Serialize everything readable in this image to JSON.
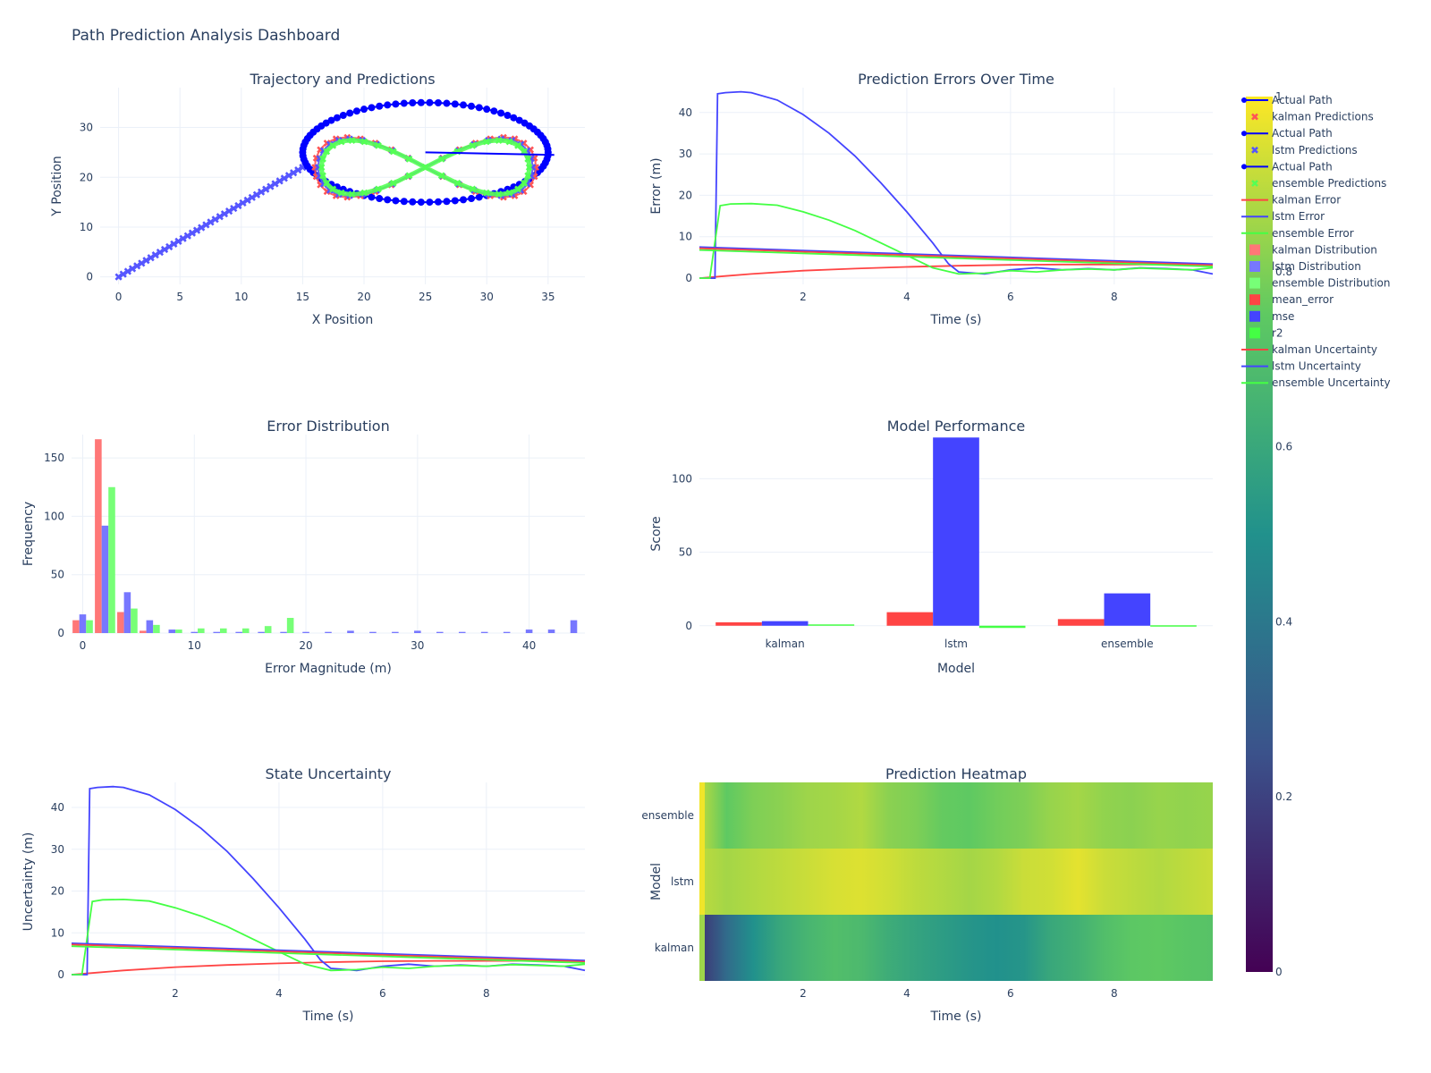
{
  "title": "Path Prediction Analysis Dashboard",
  "colors": {
    "kalman": "#EF553B",
    "lstm": "#636EFA",
    "ensemble": "#00CC96",
    "actual": "#0000FF",
    "grid": "#EBF0F8",
    "axis_text": "#2a3f5f"
  },
  "legend": [
    {
      "label": "Actual Path",
      "color": "#0000FF",
      "symbol": "line-marker"
    },
    {
      "label": "kalman Predictions",
      "color": "#FF5555",
      "symbol": "x"
    },
    {
      "label": "Actual Path",
      "color": "#0000FF",
      "symbol": "line-marker"
    },
    {
      "label": "lstm Predictions",
      "color": "#5555FF",
      "symbol": "x"
    },
    {
      "label": "Actual Path",
      "color": "#0000FF",
      "symbol": "line-marker"
    },
    {
      "label": "ensemble Predictions",
      "color": "#55FF55",
      "symbol": "x"
    },
    {
      "label": "kalman Error",
      "color": "#FF4444",
      "symbol": "line"
    },
    {
      "label": "lstm Error",
      "color": "#4444FF",
      "symbol": "line"
    },
    {
      "label": "ensemble Error",
      "color": "#44FF44",
      "symbol": "line"
    },
    {
      "label": "kalman Distribution",
      "color": "#FF7777",
      "symbol": "bar"
    },
    {
      "label": "lstm Distribution",
      "color": "#7777FF",
      "symbol": "bar"
    },
    {
      "label": "ensemble Distribution",
      "color": "#77FF77",
      "symbol": "bar"
    },
    {
      "label": "mean_error",
      "color": "#FF4444",
      "symbol": "bar"
    },
    {
      "label": "mse",
      "color": "#4444FF",
      "symbol": "bar"
    },
    {
      "label": "r2",
      "color": "#44FF44",
      "symbol": "bar"
    },
    {
      "label": "kalman Uncertainty",
      "color": "#FF4444",
      "symbol": "line"
    },
    {
      "label": "lstm Uncertainty",
      "color": "#4444FF",
      "symbol": "line"
    },
    {
      "label": "ensemble Uncertainty",
      "color": "#44FF44",
      "symbol": "line"
    }
  ],
  "colorbar": {
    "min": 0,
    "max": 1,
    "ticks": [
      "0",
      "0.2",
      "0.4",
      "0.6",
      "0.8",
      "1"
    ]
  },
  "chart_data": [
    {
      "id": "trajectory",
      "type": "scatter",
      "title": "Trajectory and Predictions",
      "xlabel": "X Position",
      "ylabel": "Y Position",
      "xlim": [
        -1.5,
        38
      ],
      "ylim": [
        -1.5,
        38
      ],
      "xticks": [
        0,
        5,
        10,
        15,
        20,
        25,
        30,
        35
      ],
      "yticks": [
        0,
        10,
        20,
        30
      ],
      "series": [
        {
          "name": "Actual Path",
          "color": "#0000FF",
          "kind": "ellipse",
          "center": [
            25,
            25
          ],
          "radii": [
            10,
            10
          ]
        },
        {
          "name": "Actual Path",
          "color": "#0000FF",
          "kind": "figure8",
          "center": [
            25,
            22
          ],
          "radii": [
            9,
            6
          ]
        },
        {
          "name": "lstm Predictions",
          "color": "#5555FF",
          "kind": "approach",
          "from": [
            0,
            0
          ],
          "to": [
            15,
            22
          ]
        }
      ]
    },
    {
      "id": "errors",
      "type": "line",
      "title": "Prediction Errors Over Time",
      "xlabel": "Time (s)",
      "ylabel": "Error (m)",
      "xlim": [
        0,
        9.9
      ],
      "ylim": [
        -1.5,
        46
      ],
      "xticks": [
        2,
        4,
        6,
        8
      ],
      "yticks": [
        0,
        10,
        20,
        30,
        40
      ],
      "series": [
        {
          "name": "kalman Error",
          "color": "#FF4444",
          "x": [
            0,
            0.5,
            1,
            2,
            3,
            4,
            5,
            6,
            7,
            8,
            9,
            9.9
          ],
          "y": [
            0,
            0.5,
            1,
            1.8,
            2.3,
            2.7,
            3,
            3.2,
            3.3,
            3.3,
            3.3,
            3.2
          ]
        },
        {
          "name": "lstm Error",
          "color": "#4444FF",
          "x": [
            0,
            0.3,
            0.35,
            0.5,
            0.8,
            1,
            1.5,
            2,
            2.5,
            3,
            3.5,
            4,
            4.5,
            4.8,
            5,
            5.5,
            6,
            6.5,
            7,
            7.5,
            8,
            8.5,
            9,
            9.5,
            9.9
          ],
          "y": [
            0,
            0,
            44.5,
            44.8,
            45,
            44.8,
            43,
            39.5,
            35,
            29.5,
            23,
            16,
            8.5,
            3.5,
            1.5,
            1,
            2,
            2.5,
            2,
            2.3,
            2,
            2.5,
            2.3,
            2,
            1
          ]
        },
        {
          "name": "ensemble Error",
          "color": "#44FF44",
          "x": [
            0,
            0.2,
            0.4,
            0.6,
            1,
            1.5,
            2,
            2.5,
            3,
            3.5,
            4,
            4.5,
            5,
            5.5,
            6,
            6.5,
            7,
            7.5,
            8,
            8.5,
            9,
            9.5,
            9.9
          ],
          "y": [
            0,
            0,
            17.5,
            17.9,
            18,
            17.6,
            16,
            14,
            11.5,
            8.5,
            5.5,
            2.5,
            1,
            1.2,
            1.8,
            1.5,
            2,
            2.2,
            2,
            2.4,
            2.2,
            2,
            2.5
          ]
        },
        {
          "name": "lstm Error",
          "color": "#4444FF",
          "x": [
            0,
            9.9
          ],
          "y": [
            7.5,
            3.4
          ]
        },
        {
          "name": "kalman Error",
          "color": "#FF4444",
          "x": [
            0,
            9.9
          ],
          "y": [
            7.2,
            3.1
          ]
        },
        {
          "name": "ensemble Error",
          "color": "#44FF44",
          "x": [
            0,
            9.9
          ],
          "y": [
            6.8,
            2.8
          ]
        }
      ]
    },
    {
      "id": "distribution",
      "type": "bar",
      "title": "Error Distribution",
      "xlabel": "Error Magnitude (m)",
      "ylabel": "Frequency",
      "xlim": [
        -1,
        45
      ],
      "ylim": [
        0,
        170
      ],
      "xticks": [
        0,
        10,
        20,
        30,
        40
      ],
      "yticks": [
        0,
        50,
        100,
        150
      ],
      "bin_centers": [
        0,
        2,
        4,
        6,
        8,
        10,
        12,
        14,
        16,
        18,
        20,
        22,
        24,
        26,
        28,
        30,
        32,
        34,
        36,
        38,
        40,
        42,
        44
      ],
      "series": [
        {
          "name": "kalman Distribution",
          "color": "#FF7777",
          "values": [
            11,
            166,
            18,
            2,
            0,
            0,
            0,
            0,
            0,
            0,
            0,
            0,
            0,
            0,
            0,
            0,
            0,
            0,
            0,
            0,
            0,
            0,
            0
          ]
        },
        {
          "name": "lstm Distribution",
          "color": "#7777FF",
          "values": [
            16,
            92,
            35,
            11,
            3,
            1,
            1,
            1,
            1,
            1,
            1,
            1,
            2,
            1,
            1,
            2,
            1,
            1,
            1,
            1,
            3,
            3,
            11
          ]
        },
        {
          "name": "ensemble Distribution",
          "color": "#77FF77",
          "values": [
            11,
            125,
            21,
            7,
            3,
            4,
            4,
            4,
            6,
            13,
            0,
            0,
            0,
            0,
            0,
            0,
            0,
            0,
            0,
            0,
            0,
            0,
            0
          ]
        }
      ]
    },
    {
      "id": "performance",
      "type": "bar",
      "title": "Model Performance",
      "xlabel": "Model",
      "ylabel": "Score",
      "ylim": [
        -5,
        130
      ],
      "yticks": [
        0,
        50,
        100
      ],
      "categories": [
        "kalman",
        "lstm",
        "ensemble"
      ],
      "series": [
        {
          "name": "mean_error",
          "color": "#FF4444",
          "values": [
            2.3,
            9.2,
            4.5
          ]
        },
        {
          "name": "mse",
          "color": "#4444FF",
          "values": [
            3.1,
            128,
            22
          ]
        },
        {
          "name": "r2",
          "color": "#44FF44",
          "values": [
            0.9,
            -1.5,
            0.3
          ]
        }
      ]
    },
    {
      "id": "uncertainty",
      "type": "line",
      "title": "State Uncertainty",
      "xlabel": "Time (s)",
      "ylabel": "Uncertainty (m)",
      "xlim": [
        0,
        9.9
      ],
      "ylim": [
        -1.5,
        46
      ],
      "xticks": [
        2,
        4,
        6,
        8
      ],
      "yticks": [
        0,
        10,
        20,
        30,
        40
      ],
      "series": [
        {
          "name": "kalman Uncertainty",
          "color": "#FF4444",
          "x": [
            0,
            0.5,
            1,
            2,
            3,
            4,
            5,
            6,
            7,
            8,
            9,
            9.9
          ],
          "y": [
            0,
            0.5,
            1,
            1.8,
            2.3,
            2.7,
            3,
            3.2,
            3.3,
            3.3,
            3.3,
            3.2
          ]
        },
        {
          "name": "lstm Uncertainty",
          "color": "#4444FF",
          "x": [
            0,
            0.3,
            0.35,
            0.5,
            0.8,
            1,
            1.5,
            2,
            2.5,
            3,
            3.5,
            4,
            4.5,
            4.8,
            5,
            5.5,
            6,
            6.5,
            7,
            7.5,
            8,
            8.5,
            9,
            9.5,
            9.9
          ],
          "y": [
            0,
            0,
            44.5,
            44.8,
            45,
            44.8,
            43,
            39.5,
            35,
            29.5,
            23,
            16,
            8.5,
            3.5,
            1.5,
            1,
            2,
            2.5,
            2,
            2.3,
            2,
            2.5,
            2.3,
            2,
            1
          ]
        },
        {
          "name": "ensemble Uncertainty",
          "color": "#44FF44",
          "x": [
            0,
            0.2,
            0.4,
            0.6,
            1,
            1.5,
            2,
            2.5,
            3,
            3.5,
            4,
            4.5,
            5,
            5.5,
            6,
            6.5,
            7,
            7.5,
            8,
            8.5,
            9,
            9.5,
            9.9
          ],
          "y": [
            0,
            0,
            17.5,
            17.9,
            18,
            17.6,
            16,
            14,
            11.5,
            8.5,
            5.5,
            2.5,
            1,
            1.2,
            1.8,
            1.5,
            2,
            2.2,
            2,
            2.4,
            2.2,
            2,
            2.5
          ]
        },
        {
          "name": "lstm Uncertainty",
          "color": "#4444FF",
          "x": [
            0,
            9.9
          ],
          "y": [
            7.5,
            3.4
          ]
        },
        {
          "name": "kalman Uncertainty",
          "color": "#FF4444",
          "x": [
            0,
            9.9
          ],
          "y": [
            7.2,
            3.1
          ]
        },
        {
          "name": "ensemble Uncertainty",
          "color": "#44FF44",
          "x": [
            0,
            9.9
          ],
          "y": [
            6.8,
            2.8
          ]
        }
      ]
    },
    {
      "id": "heatmap",
      "type": "heatmap",
      "title": "Prediction Heatmap",
      "xlabel": "Time (s)",
      "ylabel": "Model",
      "xlim": [
        0,
        9.9
      ],
      "xticks": [
        2,
        4,
        6,
        8
      ],
      "rows": [
        "kalman",
        "lstm",
        "ensemble"
      ],
      "row_values": [
        [
          0.15,
          0.35,
          0.5,
          0.6,
          0.66,
          0.7,
          0.68,
          0.62,
          0.58,
          0.55,
          0.52,
          0.5,
          0.52,
          0.6,
          0.64,
          0.7,
          0.74,
          0.75,
          0.73,
          0.72
        ],
        [
          0.9,
          0.86,
          0.88,
          0.9,
          0.92,
          0.94,
          0.95,
          0.93,
          0.9,
          0.88,
          0.86,
          0.88,
          0.92,
          0.93,
          0.96,
          0.92,
          0.9,
          0.88,
          0.9,
          0.92
        ],
        [
          0.9,
          0.75,
          0.8,
          0.82,
          0.85,
          0.86,
          0.88,
          0.82,
          0.8,
          0.76,
          0.75,
          0.78,
          0.8,
          0.84,
          0.86,
          0.83,
          0.82,
          0.84,
          0.83,
          0.84
        ]
      ]
    }
  ]
}
